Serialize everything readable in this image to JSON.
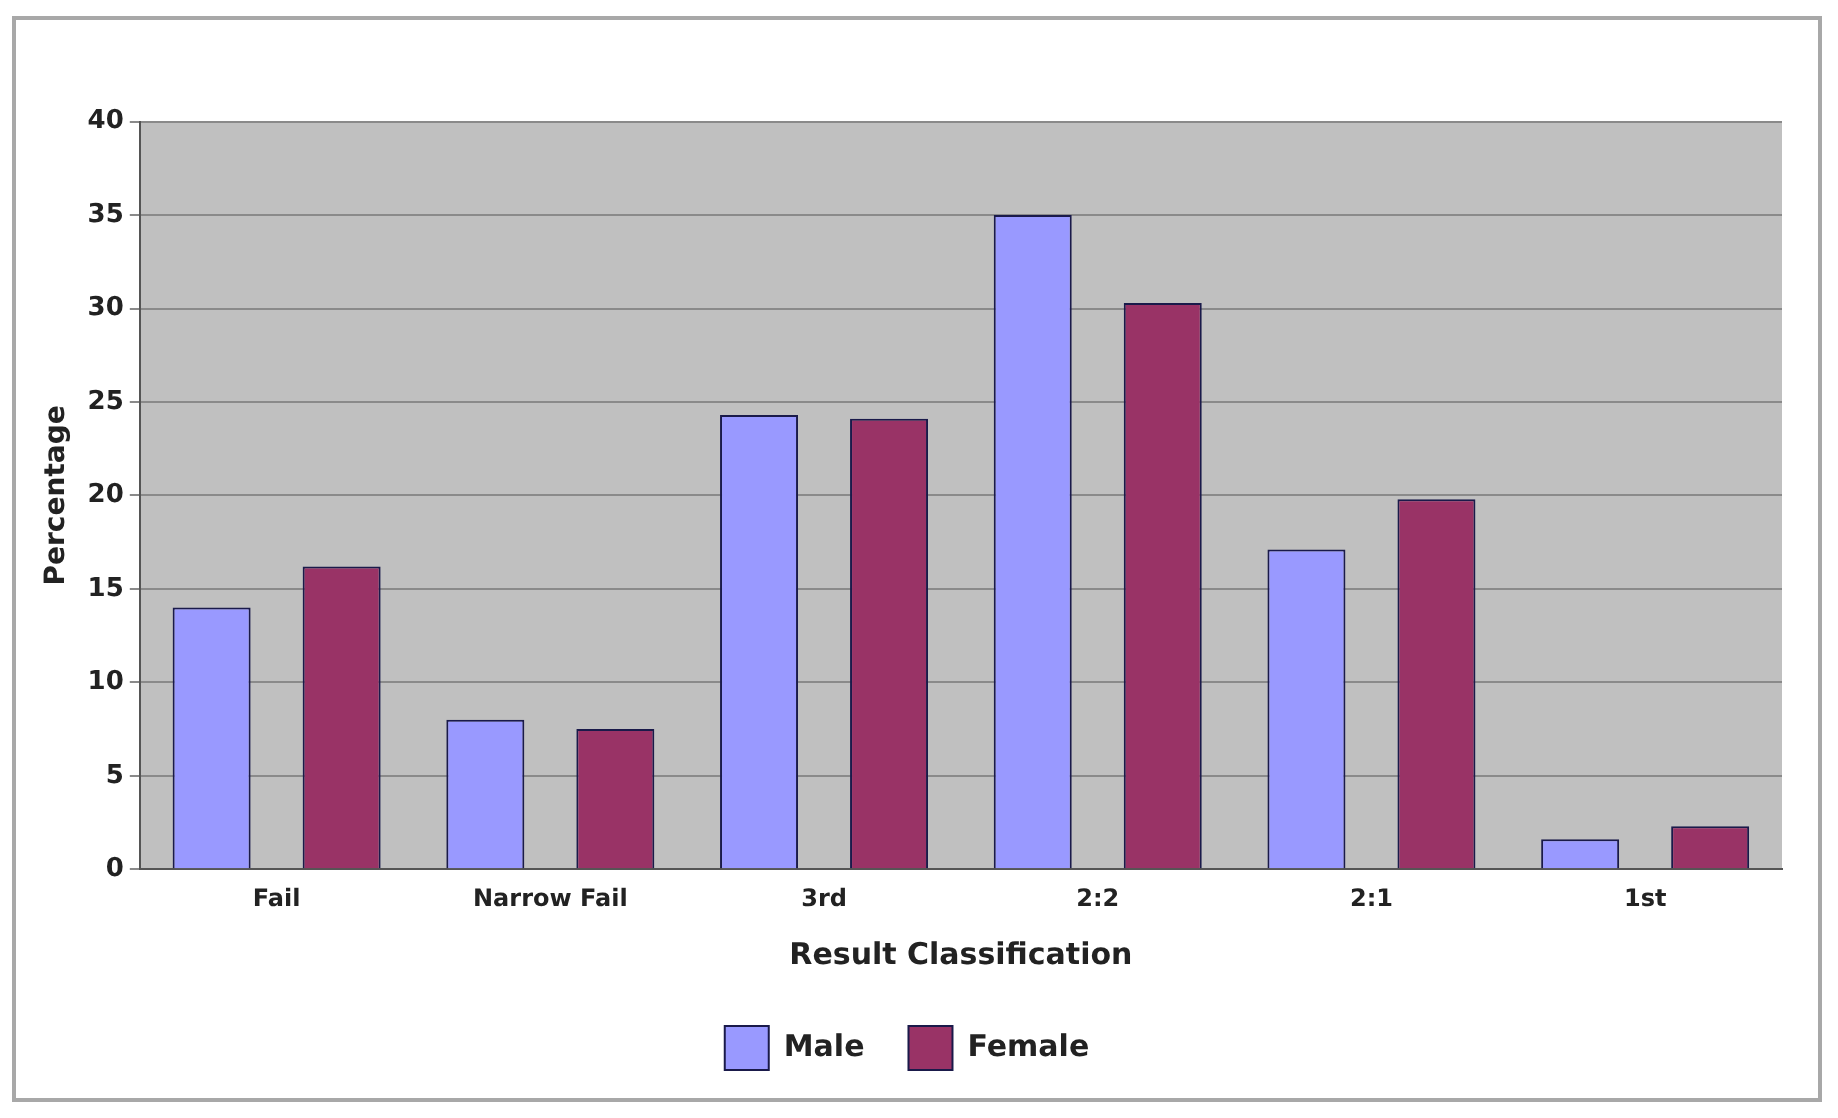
{
  "chart_data": {
    "type": "bar",
    "xlabel": "Result Classification",
    "ylabel": "Percentage",
    "categories": [
      "Fail",
      "Narrow Fail",
      "3rd",
      "2:2",
      "2:1",
      "1st"
    ],
    "series": [
      {
        "name": "Male",
        "color": "#9999ff",
        "values": [
          14.0,
          8.0,
          24.3,
          35.0,
          17.1,
          1.6
        ]
      },
      {
        "name": "Female",
        "color": "#993366",
        "values": [
          16.2,
          7.5,
          24.1,
          30.3,
          19.8,
          2.3
        ]
      }
    ],
    "ylim": [
      0,
      40
    ],
    "yticks": [
      0,
      5,
      10,
      15,
      20,
      25,
      30,
      35,
      40
    ],
    "grid": "y",
    "legend": "bottom"
  }
}
